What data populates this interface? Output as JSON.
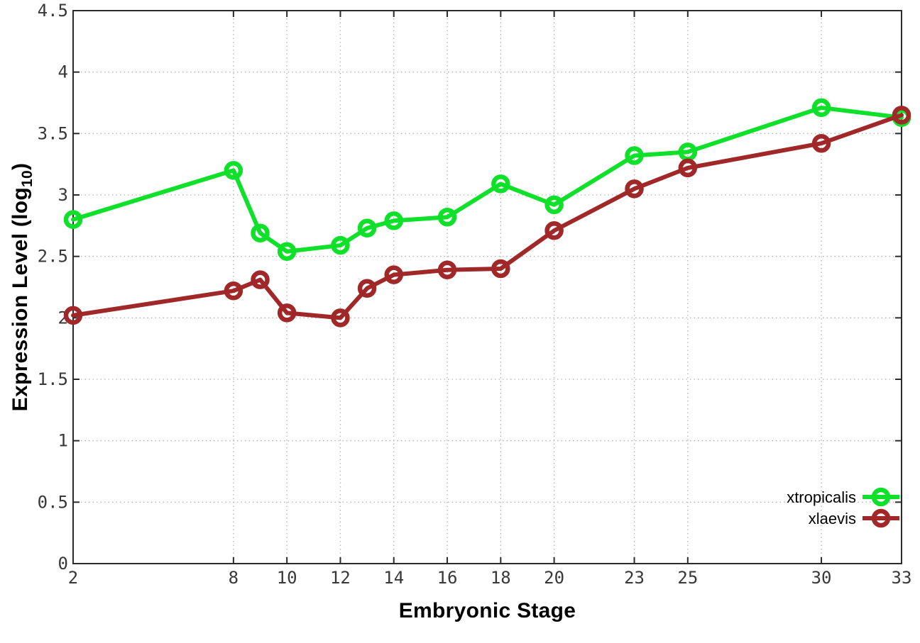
{
  "chart_data": {
    "type": "line",
    "title": "",
    "xlabel": "Embryonic Stage",
    "ylabel": "Expression Level (log10)",
    "ylabel_parts": {
      "main": "Expression Level (log",
      "sub": "10",
      "close": ")"
    },
    "xlim": [
      2,
      33
    ],
    "ylim": [
      0,
      4.5
    ],
    "grid": true,
    "legend_position": "inside-bottom-right",
    "x": [
      2,
      8,
      9,
      10,
      12,
      13,
      14,
      16,
      18,
      20,
      23,
      25,
      30,
      33
    ],
    "xticks": [
      2,
      8,
      10,
      12,
      14,
      16,
      18,
      20,
      23,
      25,
      30,
      33
    ],
    "xtick_labels": [
      "2",
      "8",
      "10",
      "12",
      "14",
      "16",
      "18",
      "20",
      "23",
      "25",
      "30",
      "33"
    ],
    "yticks": [
      0,
      0.5,
      1,
      1.5,
      2,
      2.5,
      3,
      3.5,
      4,
      4.5
    ],
    "ytick_labels": [
      "0",
      "0.5",
      "1",
      "1.5",
      "2",
      "2.5",
      "3",
      "3.5",
      "4",
      "4.5"
    ],
    "series": [
      {
        "name": "xtropicalis",
        "color": "#0fe02a",
        "marker": "open-circle",
        "values": [
          2.8,
          3.2,
          2.69,
          2.54,
          2.59,
          2.73,
          2.79,
          2.82,
          3.09,
          2.92,
          3.32,
          3.35,
          3.71,
          3.63
        ]
      },
      {
        "name": "xlaevis",
        "color": "#a12828",
        "marker": "open-circle",
        "values": [
          2.02,
          2.22,
          2.31,
          2.04,
          2.0,
          2.24,
          2.35,
          2.39,
          2.4,
          2.71,
          3.05,
          3.22,
          3.42,
          3.65
        ]
      }
    ],
    "colors": {
      "background": "#ffffff",
      "grid": "#b5b5b5",
      "border": "#2b2b2b",
      "tick_label": "#383838"
    }
  }
}
